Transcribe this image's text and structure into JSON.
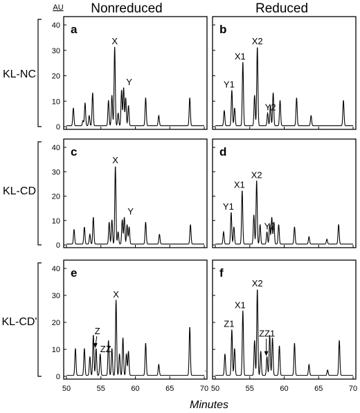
{
  "figure": {
    "column_titles": [
      "Nonreduced",
      "Reduced"
    ],
    "row_labels": [
      "KL-NC",
      "KL-CD",
      "KL-CD'"
    ],
    "y_unit": "AU",
    "xlabel": "Minutes"
  },
  "chart_data": [
    {
      "type": "line",
      "panel": "a",
      "row": "KL-NC",
      "condition": "Nonreduced",
      "xlim": [
        50,
        70
      ],
      "ylim": [
        0,
        40
      ],
      "xticks": [
        50,
        55,
        60,
        65,
        70
      ],
      "yticks": [
        0,
        10,
        20,
        30,
        40
      ],
      "peaks": [
        [
          51.0,
          7
        ],
        [
          52.4,
          2
        ],
        [
          52.7,
          9
        ],
        [
          53.3,
          4
        ],
        [
          53.8,
          13
        ],
        [
          56.1,
          10
        ],
        [
          56.6,
          12
        ],
        [
          57.0,
          31
        ],
        [
          57.5,
          5
        ],
        [
          58.0,
          14
        ],
        [
          58.3,
          15
        ],
        [
          58.6,
          11
        ],
        [
          59.0,
          8
        ],
        [
          61.5,
          11
        ],
        [
          63.4,
          4
        ],
        [
          67.9,
          11
        ]
      ],
      "annotations": [
        {
          "text": "X",
          "x": 57.0,
          "y": 31
        },
        {
          "text": "Y",
          "x": 58.4,
          "y": 15
        }
      ]
    },
    {
      "type": "line",
      "panel": "b",
      "row": "KL-NC",
      "condition": "Reduced",
      "xlim": [
        50,
        70
      ],
      "ylim": [
        0,
        40
      ],
      "xticks": [
        50,
        55,
        60,
        65,
        70
      ],
      "yticks": [
        0,
        10,
        20,
        30,
        40
      ],
      "peaks": [
        [
          51.3,
          6
        ],
        [
          52.4,
          14
        ],
        [
          52.8,
          7
        ],
        [
          54.0,
          25
        ],
        [
          55.7,
          12
        ],
        [
          56.1,
          31
        ],
        [
          57.6,
          5
        ],
        [
          58.0,
          8
        ],
        [
          58.4,
          13
        ],
        [
          59.4,
          10
        ],
        [
          61.8,
          11
        ],
        [
          63.9,
          4
        ],
        [
          68.6,
          10
        ]
      ],
      "annotations": [
        {
          "text": "Y1",
          "x": 52.4,
          "y": 14
        },
        {
          "text": "X1",
          "x": 54.0,
          "y": 25
        },
        {
          "text": "X2",
          "x": 56.1,
          "y": 31
        },
        {
          "text": "Y2",
          "x": 57.6,
          "y": 5
        }
      ]
    },
    {
      "type": "line",
      "panel": "c",
      "row": "KL-CD",
      "condition": "Nonreduced",
      "xlim": [
        50,
        70
      ],
      "ylim": [
        0,
        40
      ],
      "xticks": [
        50,
        55,
        60,
        65,
        70
      ],
      "yticks": [
        0,
        10,
        20,
        30,
        40
      ],
      "peaks": [
        [
          51.1,
          6
        ],
        [
          52.6,
          7
        ],
        [
          53.4,
          4
        ],
        [
          53.9,
          11
        ],
        [
          56.2,
          9
        ],
        [
          56.6,
          10
        ],
        [
          57.1,
          32
        ],
        [
          57.5,
          5
        ],
        [
          58.1,
          10
        ],
        [
          58.4,
          11
        ],
        [
          58.8,
          8
        ],
        [
          59.1,
          7
        ],
        [
          61.5,
          9
        ],
        [
          63.5,
          4
        ],
        [
          68.0,
          8
        ]
      ],
      "annotations": [
        {
          "text": "X",
          "x": 57.1,
          "y": 32
        },
        {
          "text": "Y",
          "x": 58.6,
          "y": 11
        }
      ]
    },
    {
      "type": "line",
      "panel": "d",
      "row": "KL-CD",
      "condition": "Reduced",
      "xlim": [
        50,
        70
      ],
      "ylim": [
        0,
        40
      ],
      "xticks": [
        50,
        55,
        60,
        65,
        70
      ],
      "yticks": [
        0,
        10,
        20,
        30,
        40
      ],
      "peaks": [
        [
          51.2,
          5
        ],
        [
          52.3,
          13
        ],
        [
          52.7,
          7
        ],
        [
          53.9,
          22
        ],
        [
          55.6,
          12
        ],
        [
          56.0,
          26
        ],
        [
          56.5,
          8
        ],
        [
          57.5,
          5
        ],
        [
          57.9,
          8
        ],
        [
          58.2,
          11
        ],
        [
          58.5,
          9
        ],
        [
          59.2,
          8
        ],
        [
          61.5,
          7
        ],
        [
          63.6,
          3
        ],
        [
          66.2,
          2
        ],
        [
          67.9,
          8
        ]
      ],
      "annotations": [
        {
          "text": "Y1",
          "x": 52.3,
          "y": 13
        },
        {
          "text": "X1",
          "x": 53.9,
          "y": 22
        },
        {
          "text": "X2",
          "x": 56.0,
          "y": 26
        },
        {
          "text": "Y2",
          "x": 57.5,
          "y": 5
        }
      ]
    },
    {
      "type": "line",
      "panel": "e",
      "row": "KL-CD'",
      "condition": "Nonreduced",
      "xlim": [
        50,
        70
      ],
      "ylim": [
        0,
        40
      ],
      "xticks": [
        50,
        55,
        60,
        65,
        70
      ],
      "yticks": [
        0,
        10,
        20,
        30,
        40
      ],
      "peaks": [
        [
          51.3,
          10
        ],
        [
          52.6,
          10
        ],
        [
          53.4,
          7
        ],
        [
          53.9,
          15
        ],
        [
          54.3,
          10
        ],
        [
          54.9,
          8
        ],
        [
          56.1,
          13
        ],
        [
          56.6,
          10
        ],
        [
          57.2,
          28
        ],
        [
          57.7,
          8
        ],
        [
          58.2,
          14
        ],
        [
          58.7,
          8
        ],
        [
          59.0,
          9
        ],
        [
          61.5,
          12
        ],
        [
          63.4,
          4
        ],
        [
          67.9,
          18
        ],
        [
          70.2,
          2
        ]
      ],
      "annotations": [
        {
          "text": "X",
          "x": 57.2,
          "y": 28
        },
        {
          "text": "Z",
          "x": 54.3,
          "y": 10
        },
        {
          "text": "ZZ",
          "x": 54.9,
          "y": 8
        }
      ]
    },
    {
      "type": "line",
      "panel": "f",
      "row": "KL-CD'",
      "condition": "Reduced",
      "xlim": [
        50,
        70
      ],
      "ylim": [
        0,
        40
      ],
      "xticks": [
        50,
        55,
        60,
        65,
        70
      ],
      "yticks": [
        0,
        10,
        20,
        30,
        40
      ],
      "peaks": [
        [
          51.4,
          8
        ],
        [
          52.4,
          17
        ],
        [
          52.8,
          10
        ],
        [
          54.0,
          24
        ],
        [
          55.7,
          13
        ],
        [
          56.1,
          32
        ],
        [
          56.6,
          9
        ],
        [
          57.5,
          7
        ],
        [
          57.9,
          15
        ],
        [
          58.3,
          14
        ],
        [
          59.3,
          11
        ],
        [
          61.5,
          12
        ],
        [
          63.6,
          4
        ],
        [
          66.3,
          2
        ],
        [
          68.0,
          13
        ]
      ],
      "annotations": [
        {
          "text": "Z1",
          "x": 52.4,
          "y": 17
        },
        {
          "text": "X1",
          "x": 54.0,
          "y": 24
        },
        {
          "text": "X2",
          "x": 56.1,
          "y": 32
        },
        {
          "text": "ZZ1",
          "x": 57.5,
          "y": 7
        }
      ]
    }
  ]
}
